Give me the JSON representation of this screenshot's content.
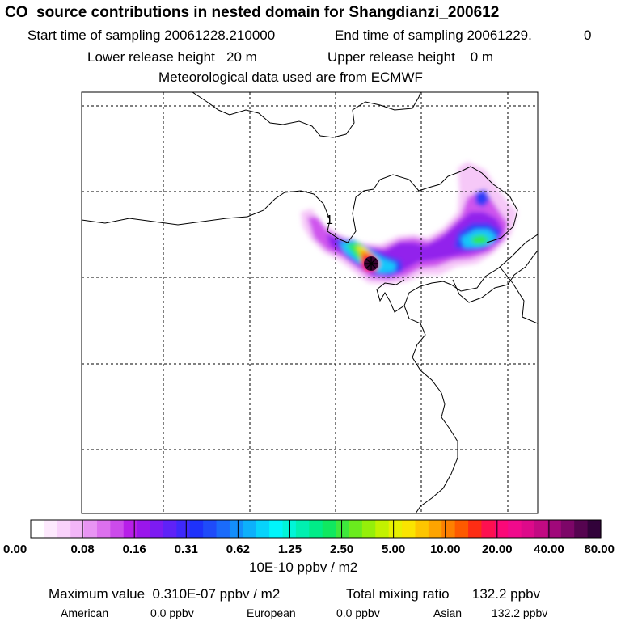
{
  "header": {
    "title": "CO  source contributions in nested domain for Shangdianzi_200612",
    "start_sampling": "Start time of sampling 20061228.210000",
    "end_sampling": "End time of sampling 20061229.",
    "end_sampling_suffix": "0",
    "lower_release": "Lower release height   20 m",
    "upper_release": "Upper release height    0 m",
    "meteo": "Meteorological data used are from ECMWF"
  },
  "map": {
    "receptor_label": "1",
    "line_color": "#000000"
  },
  "colorbar": {
    "colors": [
      "#ffffff",
      "#fde9fd",
      "#f9d2fb",
      "#f2b6f7",
      "#e894f3",
      "#dc70ee",
      "#cc4beb",
      "#b71fe8",
      "#9a16eb",
      "#7d1bf2",
      "#5f22f7",
      "#3f29fb",
      "#1e32fb",
      "#1f4bfa",
      "#1a6bfb",
      "#138efb",
      "#0db0fb",
      "#07d3fb",
      "#00f5fb",
      "#00f5d8",
      "#00f0b0",
      "#00ec88",
      "#10e860",
      "#3ee83c",
      "#6aeb1e",
      "#95ef0a",
      "#c2f200",
      "#e8f000",
      "#fae400",
      "#fdc500",
      "#fda400",
      "#fd8000",
      "#fd5a00",
      "#fd2d14",
      "#fd1050",
      "#fb0878",
      "#f00a8c",
      "#dd0a8a",
      "#c20a82",
      "#a0087a",
      "#7d0668",
      "#560450",
      "#32023a"
    ],
    "tick_labels": [
      "0.00",
      "0.08",
      "0.16",
      "0.31",
      "0.62",
      "1.25",
      "2.50",
      "5.00",
      "10.00",
      "20.00",
      "40.00",
      "80.00"
    ],
    "unit": "10E-10 ppbv / m2"
  },
  "summary": {
    "max_value": "Maximum value  0.310E-07 ppbv / m2",
    "total_mixing": "Total mixing ratio      132.2 ppbv",
    "regions": [
      {
        "name": "American",
        "value": "0.0 ppbv"
      },
      {
        "name": "European",
        "value": "0.0 ppbv"
      },
      {
        "name": "Asian",
        "value": "132.2 ppbv"
      }
    ]
  }
}
